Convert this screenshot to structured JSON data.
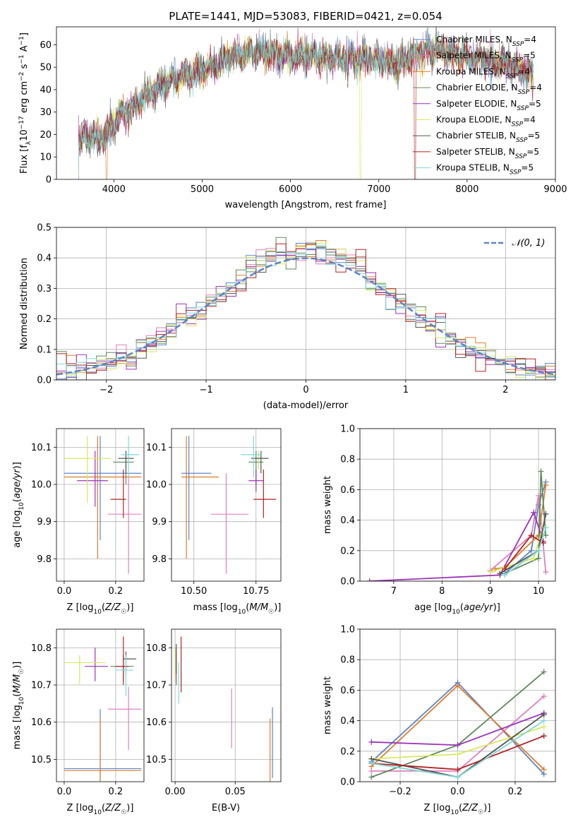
{
  "chart_data": [
    {
      "type": "line",
      "title": "PLATE=1441, MJD=53083, FIBERID=0421, z=0.054",
      "xlabel": "wavelength [Angstrom, rest frame]",
      "ylabel": "Flux [f_λ 10^-17 erg cm^-2 s^-1 A^-1]",
      "xlim": [
        3350,
        9000
      ],
      "ylim": [
        0,
        68
      ],
      "xticks": [
        4000,
        5000,
        6000,
        7000,
        8000,
        9000
      ],
      "yticks": [
        0,
        10,
        20,
        30,
        40,
        50,
        60
      ],
      "legend": "top-right",
      "legend_entries": [
        {
          "name": "Chabrier MILES, N_SSP=4",
          "color": "#5b84c9"
        },
        {
          "name": "Salpeter MILES, N_SSP=5",
          "color": "#e07fbf"
        },
        {
          "name": "Kroupa MILES, N_SSP=4",
          "color": "#e07d2a"
        },
        {
          "name": "Chabrier ELODIE, N_SSP=4",
          "color": "#5e8a5a"
        },
        {
          "name": "Salpeter ELODIE, N_SSP=5",
          "color": "#9b33b5"
        },
        {
          "name": "Kroupa ELODIE, N_SSP=4",
          "color": "#d8e85a"
        },
        {
          "name": "Chabrier STELIB, N_SSP=5",
          "color": "#555555"
        },
        {
          "name": "Salpeter STELIB, N_SSP=5",
          "color": "#b22222"
        },
        {
          "name": "Kroupa STELIB, N_SSP=5",
          "color": "#7fd8d8"
        }
      ],
      "spectrum_trend": {
        "x": [
          3600,
          3700,
          3800,
          3900,
          4000,
          4100,
          4200,
          4300,
          4400,
          4500,
          4700,
          4900,
          5100,
          5300,
          5500,
          5700,
          5900,
          6100,
          6300,
          6500,
          6700,
          6900,
          7100,
          7300,
          7500,
          7700,
          7900,
          8100,
          8300,
          8500,
          8750
        ],
        "y": [
          15,
          20,
          18,
          19,
          25,
          30,
          32,
          35,
          38,
          41,
          45,
          48,
          50,
          55,
          56,
          57,
          55,
          55,
          55,
          54,
          54,
          54,
          52,
          53,
          57,
          58,
          55,
          54,
          52,
          51,
          46
        ]
      }
    },
    {
      "type": "line",
      "xlabel": "(data-model)/error",
      "ylabel": "Normed distribution",
      "xlim": [
        -2.5,
        2.5
      ],
      "ylim": [
        0,
        0.5
      ],
      "xticks": [
        -2,
        -1,
        0,
        1,
        2
      ],
      "yticks": [
        0.0,
        0.1,
        0.2,
        0.3,
        0.4,
        0.5
      ],
      "grid": true,
      "legend": "top-right",
      "legend_entries": [
        {
          "name": "𝒩(0, 1)",
          "color": "#5b84c9",
          "style": "dashed"
        }
      ],
      "histogram_bins": {
        "start": -2.5,
        "width": 0.1
      }
    },
    {
      "type": "scatter",
      "xlabel": "Z [log10(Z/Z☉)]",
      "ylabel": "age  [log10(age/yr)]",
      "xlim": [
        -0.03,
        0.31
      ],
      "ylim": [
        9.74,
        10.15
      ],
      "xticks": [
        0.0,
        0.2
      ],
      "yticks": [
        9.8,
        9.9,
        10.0,
        10.1
      ],
      "grid": true,
      "points": [
        {
          "x": 0.14,
          "y": 10.03,
          "xerr": [
            0.14,
            0.16
          ],
          "yerr": [
            0.18,
            0.1
          ],
          "color": "#5b84c9"
        },
        {
          "x": 0.13,
          "y": 10.02,
          "xerr": [
            0.13,
            0.17
          ],
          "yerr": [
            0.22,
            0.11
          ],
          "color": "#e07d2a"
        },
        {
          "x": 0.25,
          "y": 9.92,
          "xerr": [
            0.08,
            0.05
          ],
          "yerr": [
            0.16,
            0.11
          ],
          "color": "#e07fbf"
        },
        {
          "x": 0.24,
          "y": 10.06,
          "xerr": [
            0.05,
            0.03
          ],
          "yerr": [
            0.06,
            0.03
          ],
          "color": "#5e8a5a"
        },
        {
          "x": 0.12,
          "y": 10.01,
          "xerr": [
            0.07,
            0.05
          ],
          "yerr": [
            0.07,
            0.08
          ],
          "color": "#9b33b5"
        },
        {
          "x": 0.09,
          "y": 10.07,
          "xerr": [
            0.09,
            0.09
          ],
          "yerr": [
            0.12,
            0.06
          ],
          "color": "#d8e85a"
        },
        {
          "x": 0.24,
          "y": 10.07,
          "xerr": [
            0.03,
            0.03
          ],
          "yerr": [
            0.04,
            0.02
          ],
          "color": "#555555"
        },
        {
          "x": 0.23,
          "y": 9.96,
          "xerr": [
            0.05,
            0.01
          ],
          "yerr": [
            0.05,
            0.08
          ],
          "color": "#b22222"
        },
        {
          "x": 0.25,
          "y": 10.08,
          "xerr": [
            0.03,
            0.04
          ],
          "yerr": [
            0.06,
            0.05
          ],
          "color": "#7fd8d8"
        }
      ]
    },
    {
      "type": "scatter",
      "xlabel": "mass [log10(M/M☉)]",
      "ylabel": "",
      "xlim": [
        10.41,
        10.85
      ],
      "ylim": [
        9.74,
        10.15
      ],
      "xticks": [
        10.5,
        10.75
      ],
      "yticks": [
        9.8,
        9.9,
        10.0,
        10.1
      ],
      "grid": true,
      "points": [
        {
          "x": 10.48,
          "y": 10.03,
          "xerr": [
            0.03,
            0.09
          ],
          "yerr": [
            0.18,
            0.1
          ],
          "color": "#5b84c9"
        },
        {
          "x": 10.47,
          "y": 10.02,
          "xerr": [
            0.02,
            0.13
          ],
          "yerr": [
            0.22,
            0.11
          ],
          "color": "#e07d2a"
        },
        {
          "x": 10.63,
          "y": 9.92,
          "xerr": [
            0.06,
            0.09
          ],
          "yerr": [
            0.16,
            0.11
          ],
          "color": "#e07fbf"
        },
        {
          "x": 10.75,
          "y": 10.06,
          "xerr": [
            0.03,
            0.03
          ],
          "yerr": [
            0.06,
            0.03
          ],
          "color": "#5e8a5a"
        },
        {
          "x": 10.75,
          "y": 10.01,
          "xerr": [
            0.03,
            0.03
          ],
          "yerr": [
            0.03,
            0.03
          ],
          "color": "#9b33b5"
        },
        {
          "x": 10.76,
          "y": 10.07,
          "xerr": [
            0.03,
            0.03
          ],
          "yerr": [
            0.03,
            0.02
          ],
          "color": "#d8e85a"
        },
        {
          "x": 10.77,
          "y": 10.07,
          "xerr": [
            0.04,
            0.03
          ],
          "yerr": [
            0.04,
            0.02
          ],
          "color": "#555555"
        },
        {
          "x": 10.78,
          "y": 9.96,
          "xerr": [
            0.04,
            0.05
          ],
          "yerr": [
            0.05,
            0.08
          ],
          "color": "#b22222"
        },
        {
          "x": 10.74,
          "y": 10.08,
          "xerr": [
            0.05,
            0.03
          ],
          "yerr": [
            0.06,
            0.05
          ],
          "color": "#7fd8d8"
        }
      ]
    },
    {
      "type": "line",
      "xlabel": "age  [log10(age/yr)]",
      "ylabel": "mass weight",
      "xlim": [
        6.3,
        10.35
      ],
      "ylim": [
        0,
        1.0
      ],
      "xticks": [
        7,
        8,
        9,
        10
      ],
      "yticks": [
        0.0,
        0.2,
        0.4,
        0.6,
        0.8,
        1.0
      ],
      "grid": true,
      "series": [
        {
          "color": "#5b84c9",
          "x": [
            9.3,
            9.85,
            10.0,
            10.15
          ],
          "y": [
            0.05,
            0.2,
            0.5,
            0.65
          ]
        },
        {
          "color": "#e07fbf",
          "x": [
            9.0,
            9.85,
            10.0,
            10.15
          ],
          "y": [
            0.07,
            0.3,
            0.56,
            0.06
          ]
        },
        {
          "color": "#e07d2a",
          "x": [
            9.1,
            9.3,
            10.0,
            10.15
          ],
          "y": [
            0.08,
            0.09,
            0.3,
            0.63
          ]
        },
        {
          "color": "#5e8a5a",
          "x": [
            9.3,
            10.0,
            10.05,
            10.15
          ],
          "y": [
            0.05,
            0.15,
            0.72,
            0.3
          ]
        },
        {
          "color": "#9b33b5",
          "x": [
            6.5,
            9.2,
            9.9,
            10.1
          ],
          "y": [
            0.0,
            0.04,
            0.45,
            0.26
          ]
        },
        {
          "color": "#d8e85a",
          "x": [
            9.0,
            9.9,
            10.1
          ],
          "y": [
            0.06,
            0.15,
            0.36
          ]
        },
        {
          "color": "#555555",
          "x": [
            9.2,
            10.0,
            10.15
          ],
          "y": [
            0.05,
            0.2,
            0.44
          ]
        },
        {
          "color": "#b22222",
          "x": [
            9.3,
            9.85,
            10.1
          ],
          "y": [
            0.08,
            0.3,
            0.25
          ]
        },
        {
          "color": "#7fd8d8",
          "x": [
            9.3,
            10.0,
            10.15
          ],
          "y": [
            0.04,
            0.2,
            0.35
          ]
        }
      ]
    },
    {
      "type": "scatter",
      "xlabel": "Z [log10(Z/Z☉)]",
      "ylabel": "mass [log10(M/M☉)]",
      "xlim": [
        -0.03,
        0.31
      ],
      "ylim": [
        10.44,
        10.85
      ],
      "xticks": [
        0.0,
        0.2
      ],
      "yticks": [
        10.5,
        10.6,
        10.7,
        10.8
      ],
      "grid": true,
      "points": [
        {
          "x": 0.14,
          "y": 10.475,
          "xerr": [
            0.14,
            0.16
          ],
          "yerr": [
            0.03,
            0.16
          ],
          "color": "#5b84c9"
        },
        {
          "x": 0.14,
          "y": 10.47,
          "xerr": [
            0.14,
            0.16
          ],
          "yerr": [
            0.04,
            0.14
          ],
          "color": "#e07d2a"
        },
        {
          "x": 0.25,
          "y": 10.635,
          "xerr": [
            0.08,
            0.05
          ],
          "yerr": [
            0.11,
            0.06
          ],
          "color": "#e07fbf"
        },
        {
          "x": 0.23,
          "y": 10.75,
          "xerr": [
            0.05,
            0.04
          ],
          "yerr": [
            0.04,
            0.03
          ],
          "color": "#5e8a5a"
        },
        {
          "x": 0.12,
          "y": 10.75,
          "xerr": [
            0.04,
            0.05
          ],
          "yerr": [
            0.04,
            0.05
          ],
          "color": "#9b33b5"
        },
        {
          "x": 0.06,
          "y": 10.76,
          "xerr": [
            0.06,
            0.1
          ],
          "yerr": [
            0.06,
            0.02
          ],
          "color": "#d8e85a"
        },
        {
          "x": 0.24,
          "y": 10.77,
          "xerr": [
            0.01,
            0.04
          ],
          "yerr": [
            0.04,
            0.02
          ],
          "color": "#555555"
        },
        {
          "x": 0.23,
          "y": 10.75,
          "xerr": [
            0.03,
            0.02
          ],
          "yerr": [
            0.05,
            0.08
          ],
          "color": "#b22222"
        },
        {
          "x": 0.24,
          "y": 10.74,
          "xerr": [
            0.04,
            0.03
          ],
          "yerr": [
            0.07,
            0.04
          ],
          "color": "#7fd8d8"
        }
      ]
    },
    {
      "type": "scatter",
      "xlabel": "E(B-V)",
      "ylabel": "",
      "xlim": [
        -0.003,
        0.088
      ],
      "ylim": [
        10.44,
        10.85
      ],
      "xticks": [
        0.0,
        0.05
      ],
      "yticks": [
        10.5,
        10.6,
        10.7,
        10.8
      ],
      "grid": true,
      "points": [
        {
          "x": 0.081,
          "y": 10.54,
          "yerr": [
            0.09,
            0.1
          ],
          "color": "#5b84c9"
        },
        {
          "x": 0.079,
          "y": 10.52,
          "yerr": [
            0.09,
            0.09
          ],
          "color": "#e07d2a"
        },
        {
          "x": 0.047,
          "y": 10.61,
          "yerr": [
            0.08,
            0.08
          ],
          "color": "#e07fbf"
        },
        {
          "x": 0.001,
          "y": 10.73,
          "yerr": [
            0.03,
            0.04
          ],
          "color": "#5e8a5a"
        },
        {
          "x": 0.001,
          "y": 10.75,
          "yerr": [
            0.04,
            0.04
          ],
          "color": "#9b33b5"
        },
        {
          "x": 0.0005,
          "y": 10.76,
          "yerr": [
            0.05,
            0.04
          ],
          "color": "#d8e85a"
        },
        {
          "x": 0.001,
          "y": 10.77,
          "yerr": [
            0.04,
            0.04
          ],
          "color": "#555555"
        },
        {
          "x": 0.005,
          "y": 10.76,
          "yerr": [
            0.08,
            0.07
          ],
          "color": "#b22222"
        },
        {
          "x": 0.003,
          "y": 10.71,
          "yerr": [
            0.06,
            0.05
          ],
          "color": "#7fd8d8"
        }
      ]
    },
    {
      "type": "line",
      "xlabel": "Z [log10(Z/Z☉)]",
      "ylabel": "mass weight",
      "xlim": [
        -0.34,
        0.34
      ],
      "ylim": [
        0,
        1.0
      ],
      "xticks": [
        -0.2,
        0.0,
        0.2
      ],
      "yticks": [
        0.0,
        0.2,
        0.4,
        0.6,
        0.8,
        1.0
      ],
      "grid": true,
      "series": [
        {
          "color": "#5b84c9",
          "x": [
            -0.3,
            0.0,
            0.3
          ],
          "y": [
            0.13,
            0.65,
            0.05
          ]
        },
        {
          "color": "#e07fbf",
          "x": [
            -0.3,
            0.0,
            0.3
          ],
          "y": [
            0.07,
            0.07,
            0.56
          ]
        },
        {
          "color": "#e07d2a",
          "x": [
            -0.3,
            0.0,
            0.3
          ],
          "y": [
            0.1,
            0.63,
            0.08
          ]
        },
        {
          "color": "#5e8a5a",
          "x": [
            -0.3,
            0.0,
            0.3
          ],
          "y": [
            0.03,
            0.24,
            0.72
          ]
        },
        {
          "color": "#9b33b5",
          "x": [
            -0.3,
            0.0,
            0.3
          ],
          "y": [
            0.26,
            0.24,
            0.45
          ]
        },
        {
          "color": "#d8e85a",
          "x": [
            -0.3,
            0.0,
            0.3
          ],
          "y": [
            0.15,
            0.18,
            0.36
          ]
        },
        {
          "color": "#555555",
          "x": [
            -0.3,
            0.0,
            0.3
          ],
          "y": [
            0.15,
            0.03,
            0.44
          ]
        },
        {
          "color": "#b22222",
          "x": [
            -0.3,
            0.0,
            0.3
          ],
          "y": [
            0.12,
            0.08,
            0.3
          ]
        },
        {
          "color": "#7fd8d8",
          "x": [
            -0.3,
            0.0,
            0.3
          ],
          "y": [
            0.12,
            0.03,
            0.4
          ]
        }
      ]
    }
  ]
}
